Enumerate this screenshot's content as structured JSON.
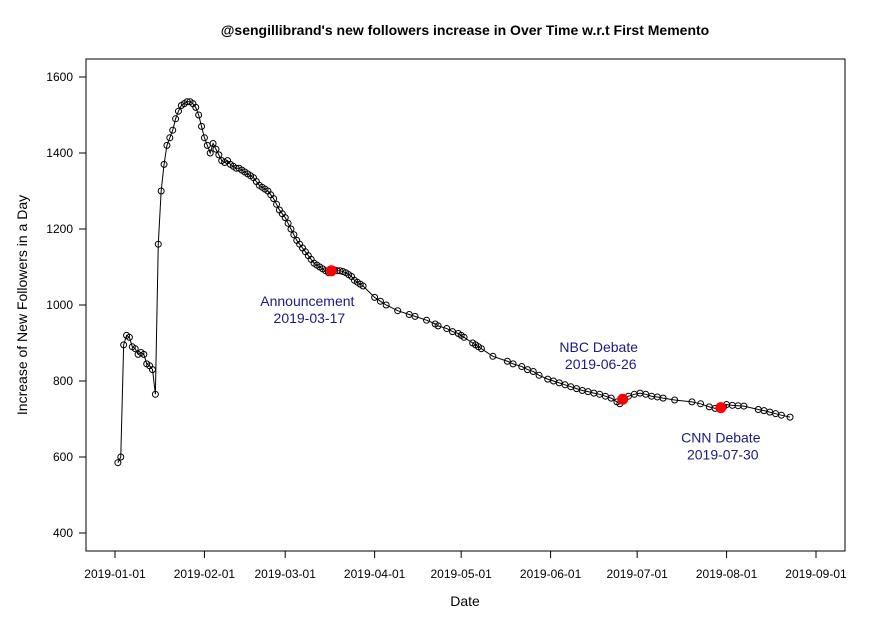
{
  "chart_data": {
    "type": "scatter",
    "title": "@sengillibrand's new followers increase in Over Time w.r.t First Memento",
    "xlabel": "Date",
    "ylabel": "Increase of New Followers in a Day",
    "xlim": [
      "2019-01-01",
      "2019-09-01"
    ],
    "ylim": [
      400,
      1600
    ],
    "x_ticks": [
      "2019-01-01",
      "2019-02-01",
      "2019-03-01",
      "2019-04-01",
      "2019-05-01",
      "2019-06-01",
      "2019-07-01",
      "2019-08-01",
      "2019-09-01"
    ],
    "y_ticks": [
      400,
      600,
      800,
      1000,
      1200,
      1400,
      1600
    ],
    "grid": false,
    "colors": {
      "line": "#000000",
      "points": "#000000",
      "highlight": "#ff0000",
      "annotation": "#1a1a80"
    },
    "series": [
      {
        "points": [
          [
            "2019-01-02",
            585
          ],
          [
            "2019-01-03",
            600
          ],
          [
            "2019-01-04",
            895
          ],
          [
            "2019-01-05",
            920
          ],
          [
            "2019-01-06",
            915
          ],
          [
            "2019-01-07",
            890
          ],
          [
            "2019-01-08",
            885
          ],
          [
            "2019-01-09",
            870
          ],
          [
            "2019-01-10",
            875
          ],
          [
            "2019-01-11",
            870
          ],
          [
            "2019-01-12",
            845
          ],
          [
            "2019-01-13",
            840
          ],
          [
            "2019-01-14",
            830
          ],
          [
            "2019-01-15",
            765
          ],
          [
            "2019-01-16",
            1160
          ],
          [
            "2019-01-17",
            1300
          ],
          [
            "2019-01-18",
            1370
          ],
          [
            "2019-01-19",
            1420
          ],
          [
            "2019-01-20",
            1440
          ],
          [
            "2019-01-21",
            1460
          ],
          [
            "2019-01-22",
            1490
          ],
          [
            "2019-01-23",
            1510
          ],
          [
            "2019-01-24",
            1525
          ],
          [
            "2019-01-25",
            1530
          ],
          [
            "2019-01-26",
            1535
          ],
          [
            "2019-01-27",
            1535
          ],
          [
            "2019-01-28",
            1530
          ],
          [
            "2019-01-29",
            1520
          ],
          [
            "2019-01-30",
            1500
          ],
          [
            "2019-01-31",
            1470
          ],
          [
            "2019-02-01",
            1440
          ],
          [
            "2019-02-02",
            1420
          ],
          [
            "2019-02-03",
            1400
          ],
          [
            "2019-02-04",
            1425
          ],
          [
            "2019-02-05",
            1410
          ],
          [
            "2019-02-06",
            1395
          ],
          [
            "2019-02-07",
            1380
          ],
          [
            "2019-02-08",
            1375
          ],
          [
            "2019-02-09",
            1380
          ],
          [
            "2019-02-10",
            1370
          ],
          [
            "2019-02-11",
            1365
          ],
          [
            "2019-02-12",
            1360
          ],
          [
            "2019-02-13",
            1360
          ],
          [
            "2019-02-14",
            1355
          ],
          [
            "2019-02-15",
            1350
          ],
          [
            "2019-02-16",
            1345
          ],
          [
            "2019-02-17",
            1340
          ],
          [
            "2019-02-18",
            1335
          ],
          [
            "2019-02-19",
            1325
          ],
          [
            "2019-02-20",
            1315
          ],
          [
            "2019-02-21",
            1310
          ],
          [
            "2019-02-22",
            1305
          ],
          [
            "2019-02-23",
            1300
          ],
          [
            "2019-02-24",
            1290
          ],
          [
            "2019-02-25",
            1280
          ],
          [
            "2019-02-26",
            1265
          ],
          [
            "2019-02-27",
            1250
          ],
          [
            "2019-02-28",
            1240
          ],
          [
            "2019-03-01",
            1230
          ],
          [
            "2019-03-02",
            1215
          ],
          [
            "2019-03-03",
            1200
          ],
          [
            "2019-03-04",
            1185
          ],
          [
            "2019-03-05",
            1170
          ],
          [
            "2019-03-06",
            1160
          ],
          [
            "2019-03-07",
            1150
          ],
          [
            "2019-03-08",
            1140
          ],
          [
            "2019-03-09",
            1130
          ],
          [
            "2019-03-10",
            1120
          ],
          [
            "2019-03-11",
            1110
          ],
          [
            "2019-03-12",
            1105
          ],
          [
            "2019-03-13",
            1100
          ],
          [
            "2019-03-14",
            1095
          ],
          [
            "2019-03-15",
            1090
          ],
          [
            "2019-03-16",
            1085
          ],
          [
            "2019-03-17",
            1090
          ],
          [
            "2019-03-18",
            1092
          ],
          [
            "2019-03-19",
            1090
          ],
          [
            "2019-03-20",
            1090
          ],
          [
            "2019-03-21",
            1088
          ],
          [
            "2019-03-22",
            1085
          ],
          [
            "2019-03-23",
            1080
          ],
          [
            "2019-03-24",
            1075
          ],
          [
            "2019-03-25",
            1065
          ],
          [
            "2019-03-26",
            1060
          ],
          [
            "2019-03-27",
            1055
          ],
          [
            "2019-03-28",
            1050
          ],
          [
            "2019-04-01",
            1020
          ],
          [
            "2019-04-03",
            1010
          ],
          [
            "2019-04-05",
            1000
          ],
          [
            "2019-04-09",
            985
          ],
          [
            "2019-04-13",
            975
          ],
          [
            "2019-04-15",
            970
          ],
          [
            "2019-04-19",
            960
          ],
          [
            "2019-04-22",
            950
          ],
          [
            "2019-04-23",
            945
          ],
          [
            "2019-04-26",
            938
          ],
          [
            "2019-04-28",
            930
          ],
          [
            "2019-04-30",
            925
          ],
          [
            "2019-05-01",
            920
          ],
          [
            "2019-05-02",
            915
          ],
          [
            "2019-05-05",
            900
          ],
          [
            "2019-05-06",
            895
          ],
          [
            "2019-05-07",
            890
          ],
          [
            "2019-05-08",
            885
          ],
          [
            "2019-05-12",
            865
          ],
          [
            "2019-05-17",
            852
          ],
          [
            "2019-05-19",
            845
          ],
          [
            "2019-05-22",
            838
          ],
          [
            "2019-05-24",
            830
          ],
          [
            "2019-05-26",
            825
          ],
          [
            "2019-05-28",
            815
          ],
          [
            "2019-05-31",
            805
          ],
          [
            "2019-06-02",
            800
          ],
          [
            "2019-06-04",
            795
          ],
          [
            "2019-06-06",
            790
          ],
          [
            "2019-06-08",
            785
          ],
          [
            "2019-06-10",
            780
          ],
          [
            "2019-06-12",
            775
          ],
          [
            "2019-06-14",
            772
          ],
          [
            "2019-06-16",
            768
          ],
          [
            "2019-06-18",
            765
          ],
          [
            "2019-06-20",
            760
          ],
          [
            "2019-06-22",
            755
          ],
          [
            "2019-06-24",
            745
          ],
          [
            "2019-06-25",
            740
          ],
          [
            "2019-06-26",
            752
          ],
          [
            "2019-06-28",
            760
          ],
          [
            "2019-06-30",
            765
          ],
          [
            "2019-07-02",
            768
          ],
          [
            "2019-07-04",
            765
          ],
          [
            "2019-07-06",
            760
          ],
          [
            "2019-07-08",
            758
          ],
          [
            "2019-07-10",
            755
          ],
          [
            "2019-07-14",
            750
          ],
          [
            "2019-07-20",
            745
          ],
          [
            "2019-07-23",
            740
          ],
          [
            "2019-07-26",
            732
          ],
          [
            "2019-07-28",
            728
          ],
          [
            "2019-07-30",
            730
          ],
          [
            "2019-07-31",
            732
          ],
          [
            "2019-08-01",
            738
          ],
          [
            "2019-08-03",
            736
          ],
          [
            "2019-08-05",
            735
          ],
          [
            "2019-08-07",
            734
          ],
          [
            "2019-08-12",
            725
          ],
          [
            "2019-08-14",
            722
          ],
          [
            "2019-08-16",
            718
          ],
          [
            "2019-08-18",
            714
          ],
          [
            "2019-08-20",
            710
          ],
          [
            "2019-08-23",
            705
          ]
        ]
      }
    ],
    "annotations": [
      {
        "date": "2019-03-17",
        "value": 1090,
        "label": "Announcement",
        "date_label": "2019-03-17",
        "anchor": "below-left"
      },
      {
        "date": "2019-06-26",
        "value": 752,
        "label": "NBC Debate",
        "date_label": "2019-06-26",
        "anchor": "above-left"
      },
      {
        "date": "2019-07-30",
        "value": 730,
        "label": "CNN Debate",
        "date_label": "2019-07-30",
        "anchor": "below"
      }
    ]
  }
}
